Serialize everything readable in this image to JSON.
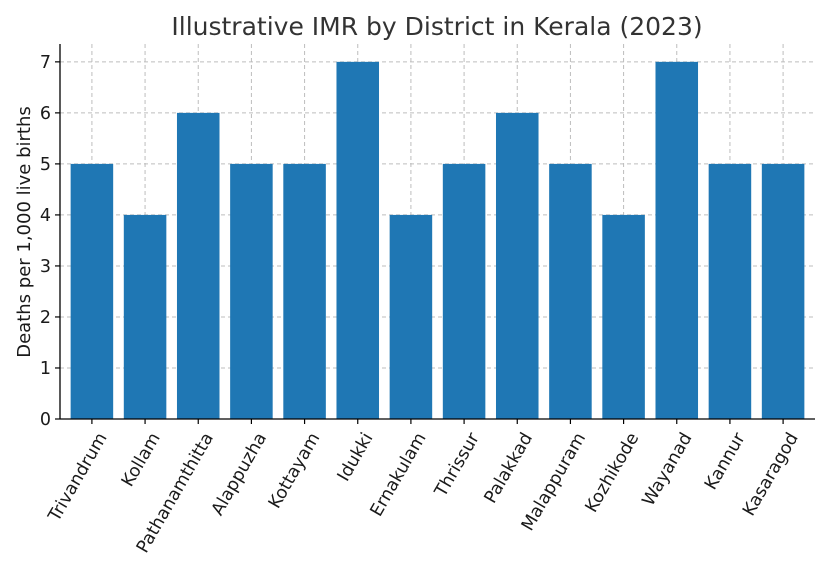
{
  "chart_data": {
    "type": "bar",
    "title": "Illustrative IMR by District in Kerala (2023)",
    "xlabel": "",
    "ylabel": "Deaths per 1,000 live births",
    "categories": [
      "Trivandrum",
      "Kollam",
      "Pathanamthitta",
      "Alappuzha",
      "Kottayam",
      "Idukki",
      "Ernakulam",
      "Thrissur",
      "Palakkad",
      "Malappuram",
      "Kozhikode",
      "Wayanad",
      "Kannur",
      "Kasaragod"
    ],
    "values": [
      5,
      4,
      6,
      5,
      5,
      7,
      4,
      5,
      6,
      5,
      4,
      7,
      5,
      5
    ],
    "ylim": [
      0,
      7.35
    ],
    "yticks": [
      0,
      1,
      2,
      3,
      4,
      5,
      6,
      7
    ],
    "bar_color": "#1f77b4",
    "grid": true,
    "grid_style": "dashed"
  }
}
